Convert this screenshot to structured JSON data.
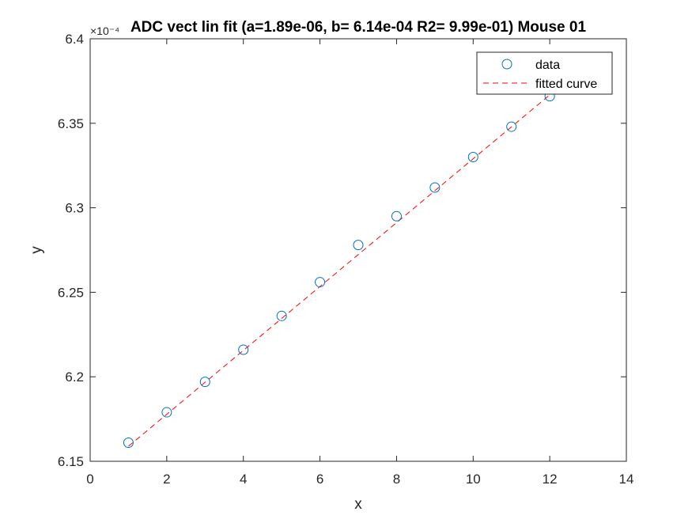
{
  "chart_data": {
    "type": "scatter",
    "title": "ADC vect lin fit (a=1.89e-06,  b= 6.14e-04 R2= 9.99e-01) Mouse 01",
    "xlabel": "x",
    "ylabel": "y",
    "xlim": [
      0,
      14
    ],
    "ylim": [
      0.000615,
      0.00064
    ],
    "x_ticks": [
      0,
      2,
      4,
      6,
      8,
      10,
      12,
      14
    ],
    "x_tick_labels": [
      "0",
      "2",
      "4",
      "6",
      "8",
      "10",
      "12",
      "14"
    ],
    "y_ticks": [
      0.000615,
      0.00062,
      0.000625,
      0.00063,
      0.000635,
      0.00064
    ],
    "y_tick_labels": [
      "6.15",
      "6.2",
      "6.25",
      "6.3",
      "6.35",
      "6.4"
    ],
    "y_exponent_label": "×10⁻⁴",
    "grid": false,
    "legend_position": "top-right",
    "series": [
      {
        "name": "data",
        "style": "markers",
        "marker": "circle",
        "color": "#0072BD",
        "x": [
          1,
          2,
          3,
          4,
          5,
          6,
          7,
          8,
          9,
          10,
          11,
          12
        ],
        "y": [
          0.0006161,
          0.0006179,
          0.0006197,
          0.0006216,
          0.0006236,
          0.0006256,
          0.0006278,
          0.0006295,
          0.0006312,
          0.000633,
          0.0006348,
          0.0006366
        ]
      },
      {
        "name": "fitted curve",
        "style": "dashed-line",
        "color": "#FF0000",
        "x": [
          1,
          12
        ],
        "y": [
          0.00061589,
          0.00063668
        ]
      }
    ]
  }
}
